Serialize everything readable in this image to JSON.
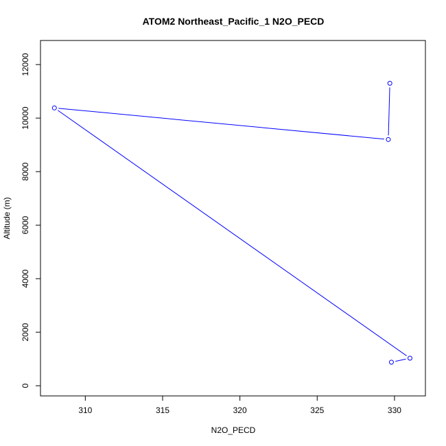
{
  "chart_data": {
    "type": "line",
    "title": "ATOM2 Northeast_Pacific_1 N2O_PECD",
    "xlabel": "N2O_PECD",
    "ylabel": "Altitude (m)",
    "xlim": [
      307.1,
      332.0
    ],
    "ylim": [
      -380,
      12900
    ],
    "x_ticks": [
      310,
      315,
      320,
      325,
      330
    ],
    "y_ticks": [
      0,
      2000,
      4000,
      6000,
      8000,
      10000,
      12000
    ],
    "grid": false,
    "legend": "none",
    "series": [
      {
        "color": "#0000ff",
        "marker": "open-circle",
        "points": [
          {
            "x": 329.7,
            "y": 11300
          },
          {
            "x": 329.6,
            "y": 9200
          },
          {
            "x": 308.0,
            "y": 10380
          },
          {
            "x": 331.0,
            "y": 1030
          },
          {
            "x": 329.8,
            "y": 880
          }
        ]
      }
    ]
  }
}
